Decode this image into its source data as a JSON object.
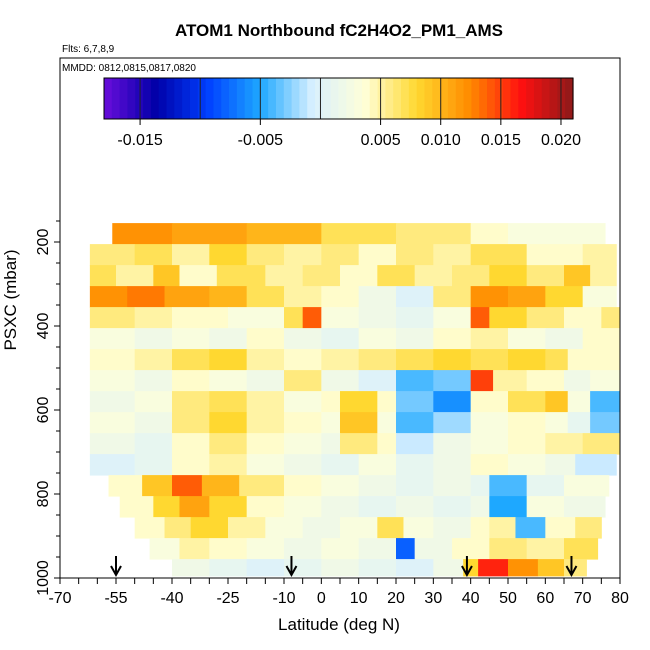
{
  "chart_data": {
    "type": "heatmap",
    "title": "ATOM1 Northbound fC2H4O2_PM1_AMS",
    "flights_label": "Flts: 6,7,8,9",
    "dates_label": "MMDD: 0812,0815,0817,0820",
    "xlabel": "Latitude (deg N)",
    "ylabel": "PSXC (mbar)",
    "xlim": [
      -70,
      80
    ],
    "ylim": [
      1000,
      100
    ],
    "xticks": [
      -70,
      -55,
      -40,
      -25,
      -10,
      0,
      10,
      20,
      30,
      40,
      50,
      60,
      70,
      80
    ],
    "xtick_labels": [
      "-70",
      "-55",
      "-40",
      "-25",
      "-10",
      "0",
      "10",
      "20",
      "30",
      "40",
      "50",
      "60",
      "70",
      "80"
    ],
    "yticks": [
      200,
      400,
      600,
      800,
      1000
    ],
    "ytick_labels": [
      "200",
      "400",
      "600",
      "800",
      "1000"
    ],
    "colorbar": {
      "range": [
        -0.018,
        0.021
      ],
      "ticks": [
        -0.015,
        -0.005,
        0.005,
        0.01,
        0.015,
        0.02
      ],
      "tick_labels": [
        "-0.015",
        "-0.005",
        "0.005",
        "0.010",
        "0.015",
        "0.020"
      ],
      "colors": [
        "#6a0ddb",
        "#0000a8",
        "#0040ff",
        "#1ea8ff",
        "#d8f0ff",
        "#ffffd8",
        "#ffd830",
        "#ff8c00",
        "#ff1010",
        "#8c1a1a"
      ]
    },
    "arrows_latitude": [
      -55,
      -8,
      39,
      67
    ],
    "layers": [
      {
        "p": 180,
        "dp": 50,
        "lat0": -56,
        "lat1": 76,
        "segments": [
          [
            -56,
            0.012
          ],
          [
            -40,
            0.011
          ],
          [
            -20,
            0.01
          ],
          [
            0,
            0.007
          ],
          [
            20,
            0.006
          ],
          [
            40,
            0.004
          ],
          [
            50,
            0.003
          ]
        ]
      },
      {
        "p": 230,
        "dp": 50,
        "lat0": -62,
        "lat1": 79,
        "segments": [
          [
            -62,
            0.006
          ],
          [
            -50,
            0.007
          ],
          [
            -40,
            0.005
          ],
          [
            -30,
            0.008
          ],
          [
            -20,
            0.006
          ],
          [
            -10,
            0.005
          ],
          [
            0,
            0.006
          ],
          [
            10,
            0.004
          ],
          [
            20,
            0.006
          ],
          [
            30,
            0.005
          ],
          [
            40,
            0.007
          ],
          [
            55,
            0.004
          ],
          [
            70,
            0.005
          ]
        ]
      },
      {
        "p": 280,
        "dp": 50,
        "lat0": -62,
        "lat1": 79,
        "segments": [
          [
            -62,
            0.007
          ],
          [
            -55,
            0.005
          ],
          [
            -45,
            0.009
          ],
          [
            -38,
            0.004
          ],
          [
            -28,
            0.007
          ],
          [
            -15,
            0.005
          ],
          [
            -5,
            0.006
          ],
          [
            5,
            0.004
          ],
          [
            15,
            0.007
          ],
          [
            25,
            0.005
          ],
          [
            35,
            0.006
          ],
          [
            45,
            0.008
          ],
          [
            55,
            0.006
          ],
          [
            65,
            0.009
          ],
          [
            72,
            0.005
          ]
        ]
      },
      {
        "p": 330,
        "dp": 50,
        "lat0": -62,
        "lat1": 79,
        "segments": [
          [
            -62,
            0.012
          ],
          [
            -52,
            0.013
          ],
          [
            -42,
            0.011
          ],
          [
            -30,
            0.01
          ],
          [
            -20,
            0.007
          ],
          [
            -10,
            0.005
          ],
          [
            0,
            0.004
          ],
          [
            10,
            0.002
          ],
          [
            20,
            0.0
          ],
          [
            30,
            0.006
          ],
          [
            40,
            0.012
          ],
          [
            50,
            0.011
          ],
          [
            60,
            0.008
          ],
          [
            70,
            0.003
          ]
        ]
      },
      {
        "p": 380,
        "dp": 50,
        "lat0": -62,
        "lat1": 80,
        "segments": [
          [
            -62,
            0.006
          ],
          [
            -50,
            0.005
          ],
          [
            -40,
            0.004
          ],
          [
            -25,
            0.003
          ],
          [
            -10,
            0.007
          ],
          [
            -5,
            0.014
          ],
          [
            0,
            0.003
          ],
          [
            10,
            0.002
          ],
          [
            20,
            0.001
          ],
          [
            30,
            0.003
          ],
          [
            40,
            0.014
          ],
          [
            45,
            0.008
          ],
          [
            55,
            0.006
          ],
          [
            65,
            0.004
          ],
          [
            75,
            0.006
          ]
        ]
      },
      {
        "p": 430,
        "dp": 50,
        "lat0": -62,
        "lat1": 80,
        "segments": [
          [
            -62,
            0.003
          ],
          [
            -50,
            0.002
          ],
          [
            -40,
            0.003
          ],
          [
            -30,
            0.002
          ],
          [
            -20,
            0.004
          ],
          [
            -10,
            0.002
          ],
          [
            0,
            0.001
          ],
          [
            10,
            0.003
          ],
          [
            20,
            0.002
          ],
          [
            30,
            0.004
          ],
          [
            40,
            0.005
          ],
          [
            50,
            0.003
          ],
          [
            60,
            0.002
          ],
          [
            70,
            0.004
          ]
        ]
      },
      {
        "p": 480,
        "dp": 50,
        "lat0": -62,
        "lat1": 80,
        "segments": [
          [
            -62,
            0.004
          ],
          [
            -50,
            0.005
          ],
          [
            -40,
            0.007
          ],
          [
            -30,
            0.008
          ],
          [
            -20,
            0.005
          ],
          [
            -10,
            0.004
          ],
          [
            0,
            0.005
          ],
          [
            10,
            0.006
          ],
          [
            20,
            0.007
          ],
          [
            30,
            0.008
          ],
          [
            40,
            0.007
          ],
          [
            50,
            0.008
          ],
          [
            60,
            0.007
          ],
          [
            66,
            0.004
          ]
        ]
      },
      {
        "p": 530,
        "dp": 50,
        "lat0": -62,
        "lat1": 80,
        "segments": [
          [
            -62,
            0.003
          ],
          [
            -50,
            0.002
          ],
          [
            -40,
            0.004
          ],
          [
            -30,
            0.003
          ],
          [
            -20,
            0.002
          ],
          [
            -10,
            0.006
          ],
          [
            0,
            0.002
          ],
          [
            10,
            0.0
          ],
          [
            20,
            -0.004
          ],
          [
            30,
            -0.003
          ],
          [
            40,
            0.015
          ],
          [
            46,
            0.005
          ],
          [
            55,
            0.004
          ],
          [
            65,
            0.002
          ],
          [
            72,
            0.003
          ]
        ]
      },
      {
        "p": 580,
        "dp": 50,
        "lat0": -62,
        "lat1": 80,
        "segments": [
          [
            -62,
            0.002
          ],
          [
            -50,
            0.003
          ],
          [
            -40,
            0.006
          ],
          [
            -30,
            0.007
          ],
          [
            -20,
            0.005
          ],
          [
            -10,
            0.003
          ],
          [
            0,
            0.004
          ],
          [
            5,
            0.008
          ],
          [
            15,
            0.004
          ],
          [
            20,
            -0.003
          ],
          [
            30,
            -0.006
          ],
          [
            40,
            0.004
          ],
          [
            50,
            0.007
          ],
          [
            60,
            0.009
          ],
          [
            66,
            0.003
          ],
          [
            72,
            -0.004
          ]
        ]
      },
      {
        "p": 630,
        "dp": 50,
        "lat0": -62,
        "lat1": 80,
        "segments": [
          [
            -62,
            0.003
          ],
          [
            -50,
            0.002
          ],
          [
            -40,
            0.006
          ],
          [
            -30,
            0.008
          ],
          [
            -20,
            0.005
          ],
          [
            -10,
            0.004
          ],
          [
            0,
            0.003
          ],
          [
            5,
            0.009
          ],
          [
            15,
            0.003
          ],
          [
            20,
            -0.004
          ],
          [
            30,
            -0.002
          ],
          [
            40,
            0.003
          ],
          [
            50,
            0.004
          ],
          [
            60,
            0.003
          ],
          [
            66,
            0.001
          ],
          [
            72,
            -0.003
          ]
        ]
      },
      {
        "p": 680,
        "dp": 50,
        "lat0": -62,
        "lat1": 80,
        "segments": [
          [
            -62,
            0.002
          ],
          [
            -50,
            0.001
          ],
          [
            -40,
            0.004
          ],
          [
            -30,
            0.006
          ],
          [
            -20,
            0.004
          ],
          [
            -10,
            0.003
          ],
          [
            0,
            0.002
          ],
          [
            5,
            0.006
          ],
          [
            15,
            0.004
          ],
          [
            20,
            -0.001
          ],
          [
            30,
            0.002
          ],
          [
            40,
            0.003
          ],
          [
            50,
            0.004
          ],
          [
            60,
            0.005
          ],
          [
            70,
            0.006
          ]
        ]
      },
      {
        "p": 730,
        "dp": 50,
        "lat0": -62,
        "lat1": 79,
        "segments": [
          [
            -62,
            0.0
          ],
          [
            -50,
            0.001
          ],
          [
            -40,
            0.004
          ],
          [
            -30,
            0.005
          ],
          [
            -20,
            0.003
          ],
          [
            -10,
            0.002
          ],
          [
            0,
            0.001
          ],
          [
            10,
            0.003
          ],
          [
            20,
            0.001
          ],
          [
            30,
            0.002
          ],
          [
            40,
            0.004
          ],
          [
            50,
            0.003
          ],
          [
            60,
            0.002
          ],
          [
            68,
            -0.001
          ]
        ]
      },
      {
        "p": 780,
        "dp": 50,
        "lat0": -57,
        "lat1": 77,
        "segments": [
          [
            -57,
            0.004
          ],
          [
            -48,
            0.009
          ],
          [
            -40,
            0.014
          ],
          [
            -32,
            0.01
          ],
          [
            -22,
            0.006
          ],
          [
            -10,
            0.004
          ],
          [
            0,
            0.003
          ],
          [
            10,
            0.002
          ],
          [
            20,
            0.001
          ],
          [
            30,
            0.002
          ],
          [
            40,
            0.001
          ],
          [
            45,
            -0.004
          ],
          [
            55,
            0.001
          ],
          [
            65,
            0.003
          ]
        ]
      },
      {
        "p": 830,
        "dp": 50,
        "lat0": -54,
        "lat1": 76,
        "segments": [
          [
            -54,
            0.004
          ],
          [
            -45,
            0.008
          ],
          [
            -38,
            0.011
          ],
          [
            -30,
            0.008
          ],
          [
            -20,
            0.004
          ],
          [
            -10,
            0.003
          ],
          [
            0,
            0.002
          ],
          [
            10,
            0.001
          ],
          [
            20,
            0.002
          ],
          [
            30,
            0.001
          ],
          [
            40,
            0.002
          ],
          [
            45,
            -0.005
          ],
          [
            55,
            0.003
          ],
          [
            65,
            0.002
          ]
        ]
      },
      {
        "p": 880,
        "dp": 50,
        "lat0": -50,
        "lat1": 75,
        "segments": [
          [
            -50,
            0.004
          ],
          [
            -42,
            0.006
          ],
          [
            -35,
            0.008
          ],
          [
            -25,
            0.005
          ],
          [
            -15,
            0.003
          ],
          [
            -5,
            0.002
          ],
          [
            5,
            0.003
          ],
          [
            15,
            0.007
          ],
          [
            22,
            0.003
          ],
          [
            30,
            0.002
          ],
          [
            40,
            0.004
          ],
          [
            45,
            0.005
          ],
          [
            52,
            -0.004
          ],
          [
            60,
            0.004
          ],
          [
            68,
            0.006
          ]
        ]
      },
      {
        "p": 930,
        "dp": 50,
        "lat0": -46,
        "lat1": 74,
        "segments": [
          [
            -46,
            0.003
          ],
          [
            -38,
            0.005
          ],
          [
            -30,
            0.004
          ],
          [
            -20,
            0.003
          ],
          [
            -10,
            0.002
          ],
          [
            0,
            0.003
          ],
          [
            10,
            0.002
          ],
          [
            20,
            -0.008
          ],
          [
            25,
            0.002
          ],
          [
            35,
            0.004
          ],
          [
            45,
            0.006
          ],
          [
            55,
            0.005
          ],
          [
            65,
            0.007
          ]
        ]
      },
      {
        "p": 975,
        "dp": 40,
        "lat0": -40,
        "lat1": 71,
        "segments": [
          [
            -40,
            0.002
          ],
          [
            -30,
            0.001
          ],
          [
            -20,
            0.0
          ],
          [
            -10,
            0.001
          ],
          [
            0,
            0.002
          ],
          [
            10,
            0.001
          ],
          [
            20,
            0.0
          ],
          [
            30,
            0.002
          ],
          [
            38,
            0.008
          ],
          [
            42,
            0.016
          ],
          [
            50,
            0.012
          ],
          [
            58,
            0.009
          ],
          [
            65,
            0.006
          ]
        ]
      }
    ]
  }
}
